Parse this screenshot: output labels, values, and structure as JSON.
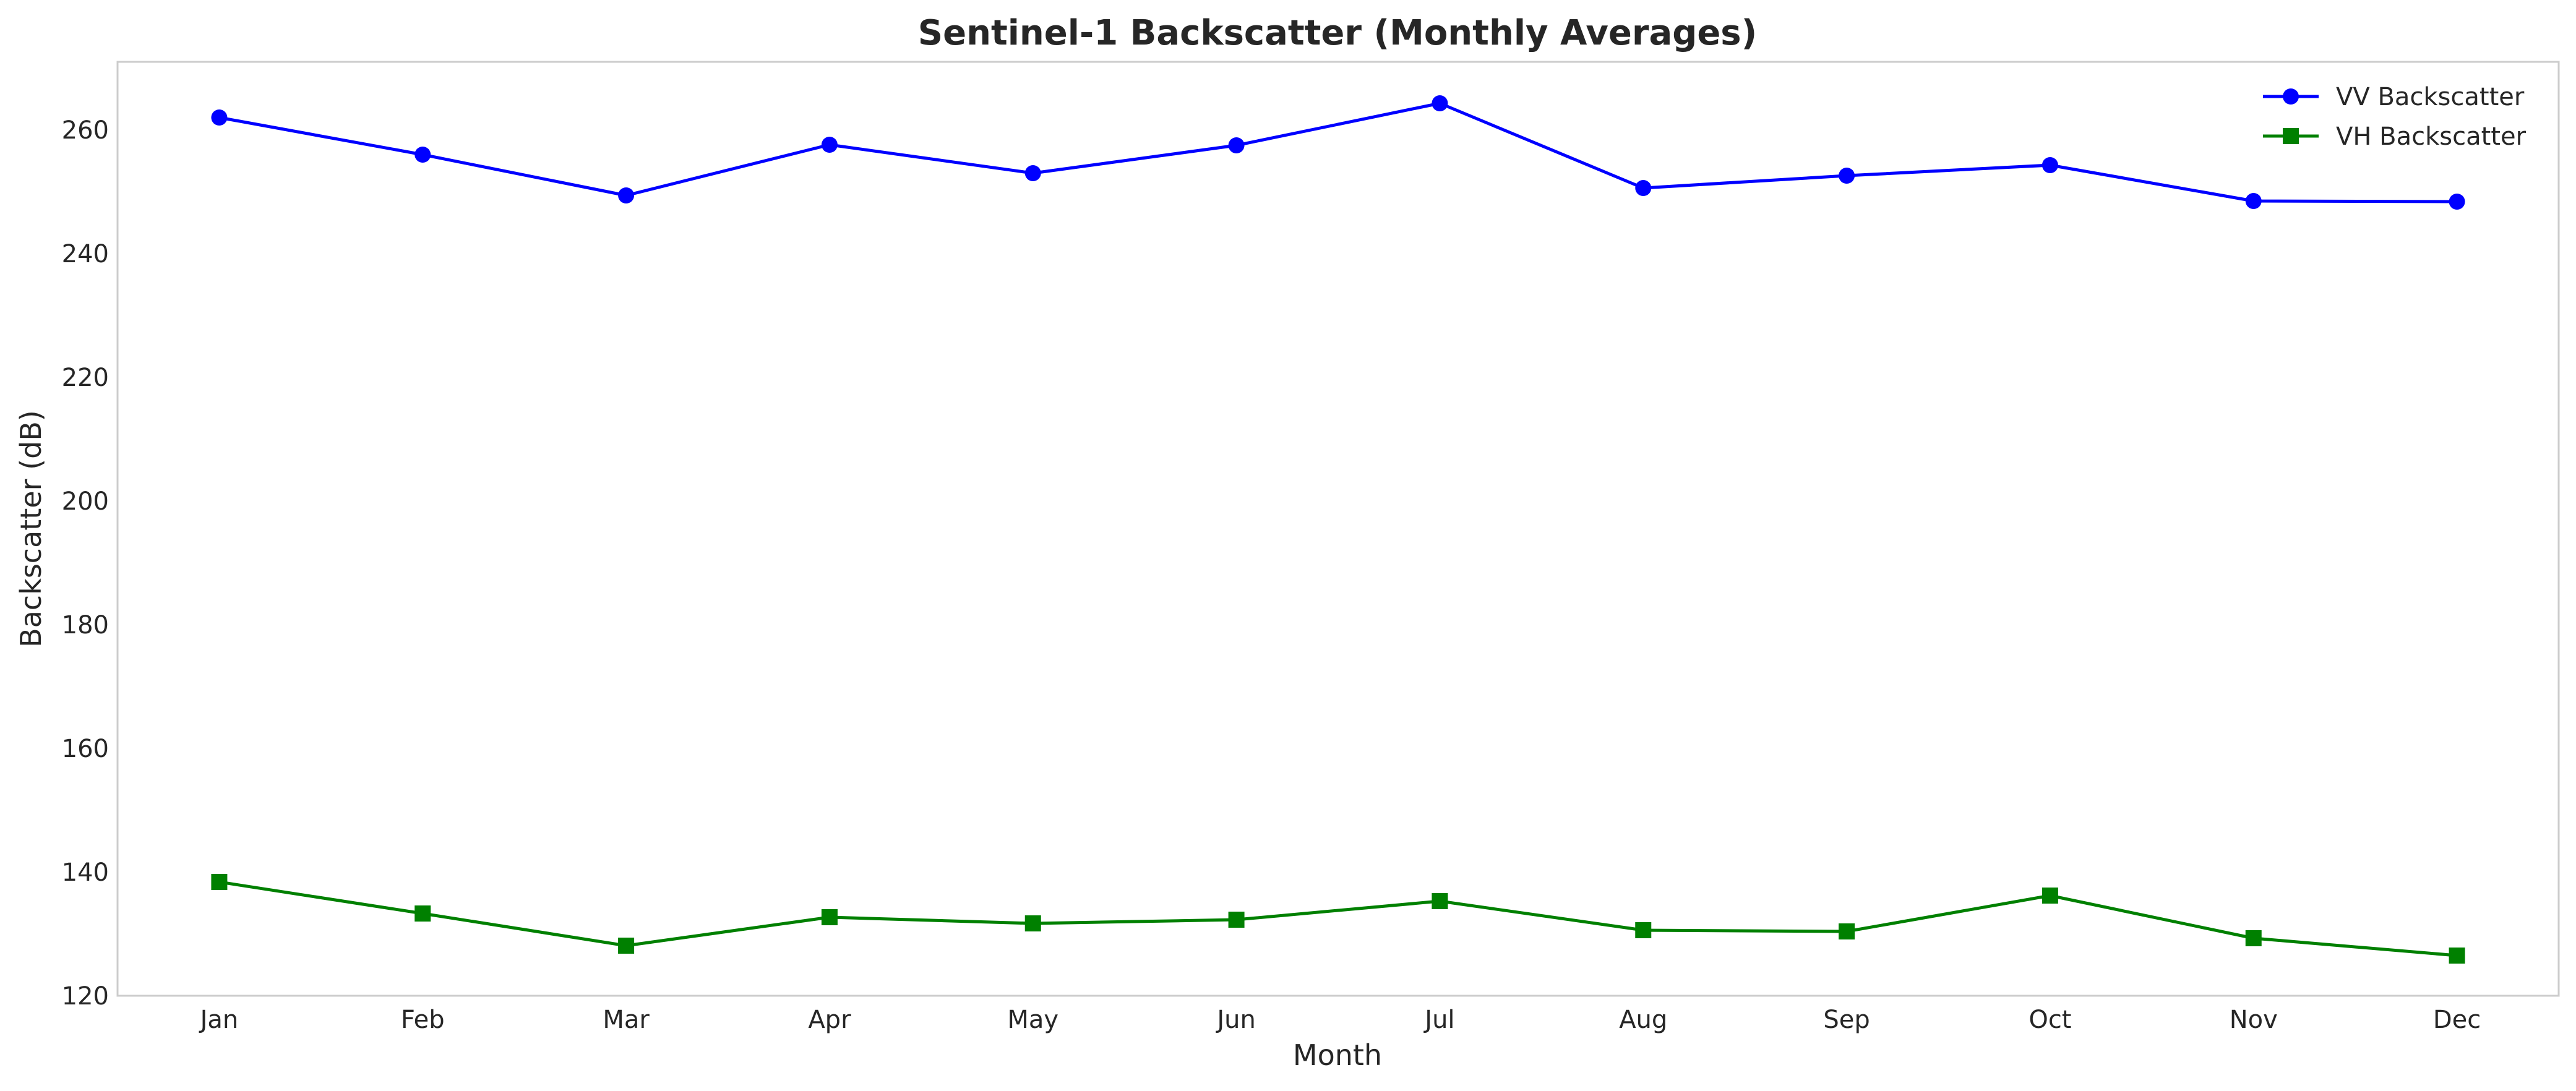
{
  "chart_data": {
    "type": "line",
    "title": "Sentinel-1 Backscatter (Monthly Averages)",
    "xlabel": "Month",
    "ylabel": "Backscatter (dB)",
    "categories": [
      "Jan",
      "Feb",
      "Mar",
      "Apr",
      "May",
      "Jun",
      "Jul",
      "Aug",
      "Sep",
      "Oct",
      "Nov",
      "Dec"
    ],
    "ylim": [
      120,
      271
    ],
    "yticks": [
      120,
      140,
      160,
      180,
      200,
      220,
      240,
      260
    ],
    "grid": false,
    "legend_position": "top-right",
    "series": [
      {
        "name": "VV Backscatter",
        "color": "#0000ff",
        "marker": "circle",
        "values": [
          262.0,
          256.0,
          249.4,
          257.6,
          253.0,
          257.5,
          264.3,
          250.6,
          252.6,
          254.3,
          248.5,
          248.4
        ]
      },
      {
        "name": "VH Backscatter",
        "color": "#008000",
        "marker": "square",
        "values": [
          138.4,
          133.3,
          128.1,
          132.7,
          131.7,
          132.3,
          135.3,
          130.6,
          130.4,
          136.2,
          129.3,
          126.5
        ]
      }
    ]
  }
}
